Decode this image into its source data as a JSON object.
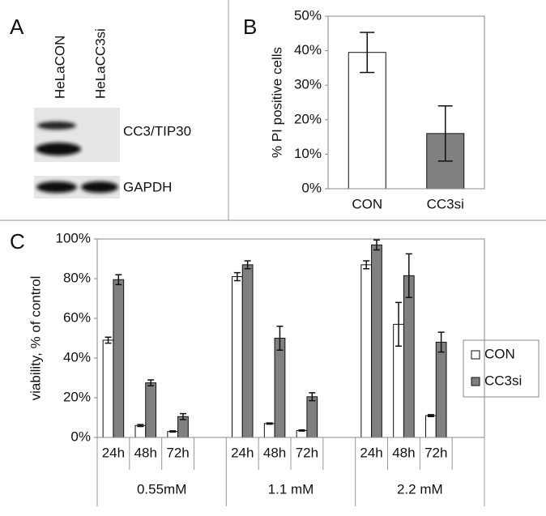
{
  "blot": {
    "label": "A",
    "lanes": [
      "HeLaCON",
      "HeLaCC3si"
    ],
    "bands": [
      "CC3/TIP30",
      "GAPDH"
    ]
  },
  "chart_data": [
    {
      "type": "bar",
      "label": "B",
      "ylabel": "% PI positive cells",
      "categories": [
        "CON",
        "CC3si"
      ],
      "values": [
        39.5,
        16
      ],
      "errors": [
        5.8,
        8
      ],
      "colors": [
        "#ffffff",
        "#808080"
      ],
      "ylim": [
        0,
        50
      ],
      "yticks": [
        {
          "value": 0,
          "label": "0%"
        },
        {
          "value": 10,
          "label": "10%"
        },
        {
          "value": 20,
          "label": "20%"
        },
        {
          "value": 30,
          "label": "30%"
        },
        {
          "value": 40,
          "label": "40%"
        },
        {
          "value": 50,
          "label": "50%"
        }
      ]
    },
    {
      "type": "bar",
      "label": "C",
      "ylabel": "viability, % of control",
      "categories": [
        "24h",
        "48h",
        "72h",
        "24h",
        "48h",
        "72h",
        "24h",
        "48h",
        "72h"
      ],
      "groups": [
        "0.55mM",
        "1.1 mM",
        "2.2 mM"
      ],
      "series": [
        {
          "name": "CON",
          "color": "#ffffff",
          "values": [
            49,
            6,
            3,
            81,
            7,
            3.5,
            87,
            57,
            11
          ],
          "errors": [
            1.5,
            0.5,
            0.3,
            2,
            0.3,
            0.3,
            2,
            11,
            0.5
          ]
        },
        {
          "name": "CC3si",
          "color": "#808080",
          "values": [
            79.5,
            27.5,
            10.5,
            87,
            50,
            20.5,
            97,
            81.5,
            48
          ],
          "errors": [
            2.5,
            1.5,
            1.5,
            2,
            6,
            2,
            2.5,
            11,
            5
          ]
        }
      ],
      "ylim": [
        0,
        100
      ],
      "yticks": [
        {
          "value": 0,
          "label": "0%"
        },
        {
          "value": 20,
          "label": "20%"
        },
        {
          "value": 40,
          "label": "40%"
        },
        {
          "value": 60,
          "label": "60%"
        },
        {
          "value": 80,
          "label": "80%"
        },
        {
          "value": 100,
          "label": "100%"
        }
      ]
    }
  ]
}
